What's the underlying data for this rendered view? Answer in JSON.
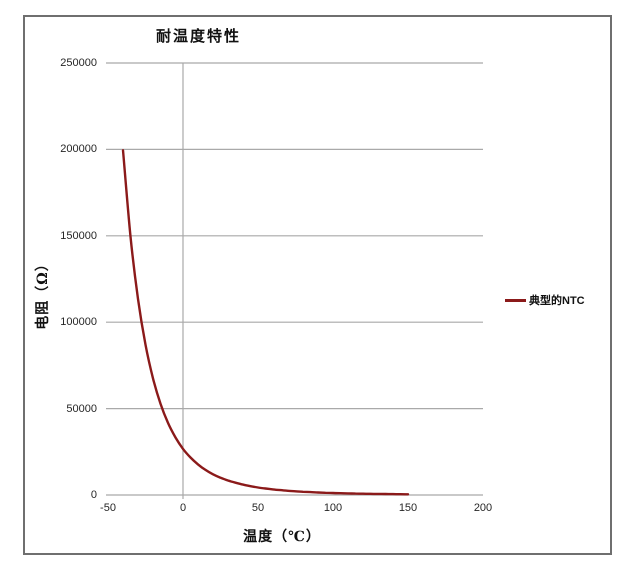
{
  "chart_data": {
    "type": "line",
    "title": "耐温度特性",
    "xlabel": "温度（℃）",
    "ylabel": "电阻（Ω）",
    "xlim": [
      -50,
      200
    ],
    "ylim": [
      0,
      250000
    ],
    "x_ticks": [
      "-50",
      "0",
      "50",
      "100",
      "150",
      "200"
    ],
    "y_ticks": [
      "0",
      "50000",
      "100000",
      "150000",
      "200000",
      "250000"
    ],
    "grid": "horizontal",
    "legend_position": "right-outside-plot",
    "series": [
      {
        "name": "典型的NTC",
        "color": "#8b1a1a",
        "x": [
          -40,
          -35,
          -30,
          -25,
          -20,
          -15,
          -10,
          -5,
          0,
          5,
          10,
          15,
          20,
          25,
          30,
          35,
          40,
          45,
          50,
          55,
          60,
          65,
          70,
          75,
          80,
          85,
          90,
          95,
          100,
          105,
          110,
          115,
          120,
          125,
          130,
          135,
          140,
          145,
          150
        ],
        "y": [
          199500,
          149600,
          113500,
          87000,
          67500,
          52800,
          41700,
          33300,
          26700,
          21700,
          17700,
          14500,
          12000,
          10000,
          8400,
          7100,
          6000,
          5100,
          4360,
          3750,
          3240,
          2810,
          2450,
          2140,
          1880,
          1660,
          1470,
          1300,
          1160,
          1030,
          925,
          830,
          748,
          676,
          612,
          555,
          504,
          460,
          420
        ]
      }
    ],
    "colors": {
      "series": "#8b1a1a",
      "gridline": "#a9a9a9",
      "frame_border": "#6f6f6f",
      "tick_text": "#262626",
      "title_text": "#111111"
    }
  }
}
